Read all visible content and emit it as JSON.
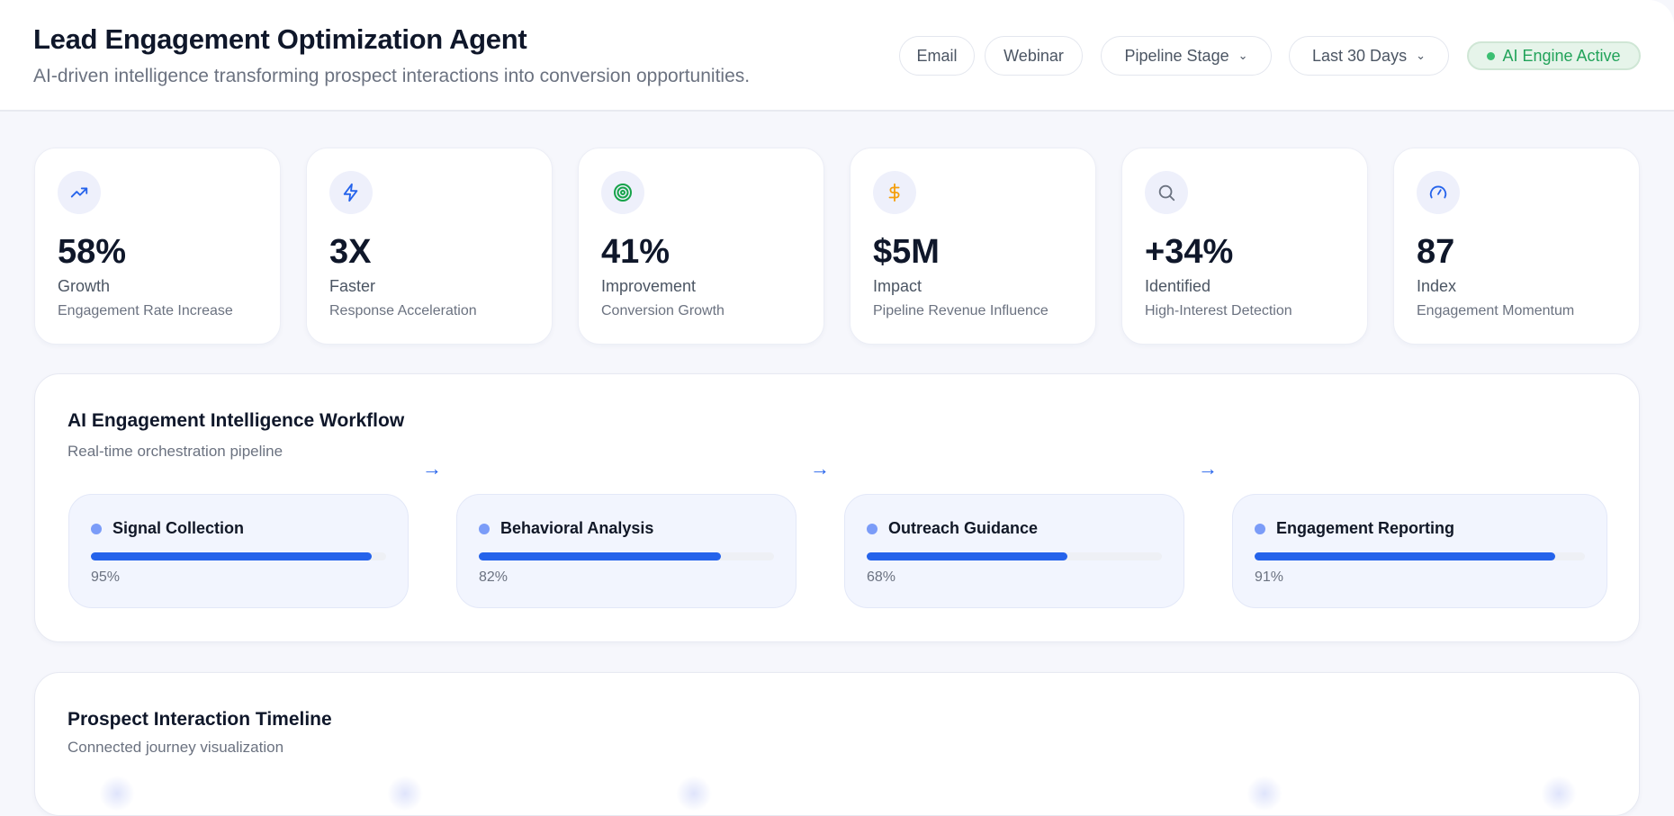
{
  "header": {
    "title": "Lead Engagement Optimization Agent",
    "subtitle": "AI-driven intelligence transforming prospect interactions into conversion opportunities.",
    "filters": {
      "email": "Email",
      "webinar": "Webinar",
      "pipeline_stage": "Pipeline Stage",
      "date_range": "Last 30 Days"
    },
    "status": "AI Engine Active",
    "status_color": "#22a35a"
  },
  "kpis": [
    {
      "icon": "trending-up-icon",
      "color": "#2563eb",
      "value": "58%",
      "label": "Growth",
      "sublabel": "Engagement Rate Increase"
    },
    {
      "icon": "zap-icon",
      "color": "#2563eb",
      "value": "3X",
      "label": "Faster",
      "sublabel": "Response Acceleration"
    },
    {
      "icon": "target-icon",
      "color": "#16a34a",
      "value": "41%",
      "label": "Improvement",
      "sublabel": "Conversion Growth"
    },
    {
      "icon": "dollar-icon",
      "color": "#f59e0b",
      "value": "$5M",
      "label": "Impact",
      "sublabel": "Pipeline Revenue Influence"
    },
    {
      "icon": "search-icon",
      "color": "#6b7280",
      "value": "+34%",
      "label": "Identified",
      "sublabel": "High-Interest Detection"
    },
    {
      "icon": "gauge-icon",
      "color": "#2563eb",
      "value": "87",
      "label": "Index",
      "sublabel": "Engagement Momentum"
    }
  ],
  "workflow": {
    "title": "AI Engagement Intelligence Workflow",
    "subtitle": "Real-time orchestration pipeline",
    "steps": [
      {
        "label": "Signal Collection",
        "progress": 95,
        "progress_text": "95%"
      },
      {
        "label": "Behavioral Analysis",
        "progress": 82,
        "progress_text": "82%"
      },
      {
        "label": "Outreach Guidance",
        "progress": 68,
        "progress_text": "68%"
      },
      {
        "label": "Engagement Reporting",
        "progress": 91,
        "progress_text": "91%"
      }
    ],
    "accent": "#2563eb"
  },
  "timeline": {
    "title": "Prospect Interaction Timeline",
    "subtitle": "Connected journey visualization"
  }
}
